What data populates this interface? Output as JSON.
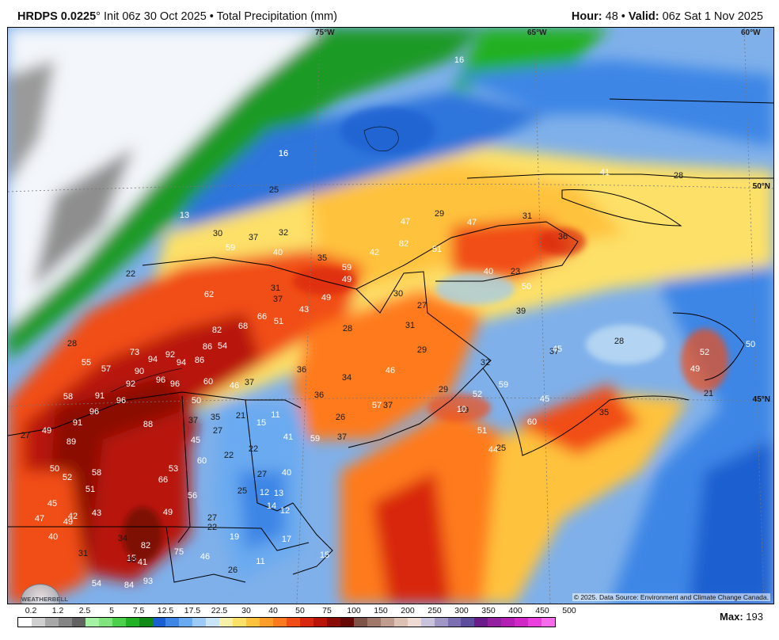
{
  "header": {
    "model": "HRDPS 0.0225",
    "degree": "°",
    "init": "Init 06z 30 Oct 2025",
    "bullet": "•",
    "product": "Total Precipitation (mm)",
    "hour_label": "Hour:",
    "hour": "48",
    "valid_label": "Valid:",
    "valid": "06z Sat 1 Nov 2025"
  },
  "map": {
    "copyright": "© 2025. Data Source: Environment and Climate Change Canada.",
    "logo_text": "WEATHERBELL",
    "graticule": {
      "longitudes": [
        "75°W",
        "65°W",
        "60°W"
      ],
      "latitudes": [
        "50°N",
        "45°N"
      ]
    },
    "values": [
      "16",
      "16",
      "13",
      "16",
      "25",
      "30",
      "37",
      "32",
      "59",
      "40",
      "35",
      "59",
      "49",
      "22",
      "31",
      "37",
      "62",
      "49",
      "43",
      "66",
      "51",
      "82",
      "68",
      "54",
      "86",
      "73",
      "94",
      "92",
      "94",
      "86",
      "28",
      "55",
      "57",
      "90",
      "92",
      "96",
      "96",
      "60",
      "46",
      "37",
      "58",
      "91",
      "96",
      "50",
      "96",
      "88",
      "91",
      "49",
      "89",
      "35",
      "21",
      "11",
      "15",
      "27",
      "37",
      "45",
      "60",
      "22",
      "22",
      "50",
      "52",
      "58",
      "66",
      "53",
      "51",
      "56",
      "25",
      "12",
      "13",
      "14",
      "12",
      "45",
      "42",
      "43",
      "49",
      "27",
      "22",
      "47",
      "49",
      "40",
      "34",
      "82",
      "75",
      "19",
      "17",
      "31",
      "15",
      "38",
      "41",
      "93",
      "84",
      "54",
      "46",
      "26",
      "11",
      "15",
      "41",
      "28",
      "29",
      "47",
      "31",
      "36",
      "82",
      "42",
      "51",
      "23",
      "40",
      "50",
      "47",
      "30",
      "27",
      "31",
      "29",
      "39",
      "37",
      "32",
      "28",
      "34",
      "46",
      "36",
      "36",
      "37",
      "57",
      "39",
      "41",
      "59",
      "26",
      "37",
      "40",
      "27",
      "29",
      "10",
      "52",
      "59",
      "45",
      "51",
      "25",
      "44",
      "60",
      "35",
      "49",
      "52",
      "50",
      "45",
      "28",
      "21",
      "27"
    ]
  },
  "legend": {
    "labels": [
      "0.2",
      "1.2",
      "2.5",
      "5",
      "7.5",
      "12.5",
      "17.5",
      "22.5",
      "30",
      "40",
      "50",
      "75",
      "100",
      "150",
      "200",
      "250",
      "300",
      "350",
      "400",
      "450",
      "500"
    ],
    "colors": [
      "#ffffff",
      "#cfcfcf",
      "#a8a8a8",
      "#858585",
      "#626262",
      "#a6f2a4",
      "#7fe47d",
      "#4ccf4a",
      "#22b024",
      "#128a18",
      "#1a5fd0",
      "#3d86e6",
      "#6aaaf0",
      "#9ccaf5",
      "#c9e4f6",
      "#f6f0a8",
      "#fde067",
      "#ffc23d",
      "#ff9d2a",
      "#ff7a1e",
      "#f14d17",
      "#d82810",
      "#b81408",
      "#8b0c06",
      "#650806",
      "#7d5447",
      "#a0786a",
      "#c09c8e",
      "#dcc0b4",
      "#eedad2",
      "#c8c2dc",
      "#a097c6",
      "#7b6eb1",
      "#5e4d9c",
      "#6a1d8a",
      "#92209f",
      "#b21fb2",
      "#d028c6",
      "#ea3fdc",
      "#f76ae9"
    ],
    "max_label": "Max:",
    "max_value": "193"
  }
}
